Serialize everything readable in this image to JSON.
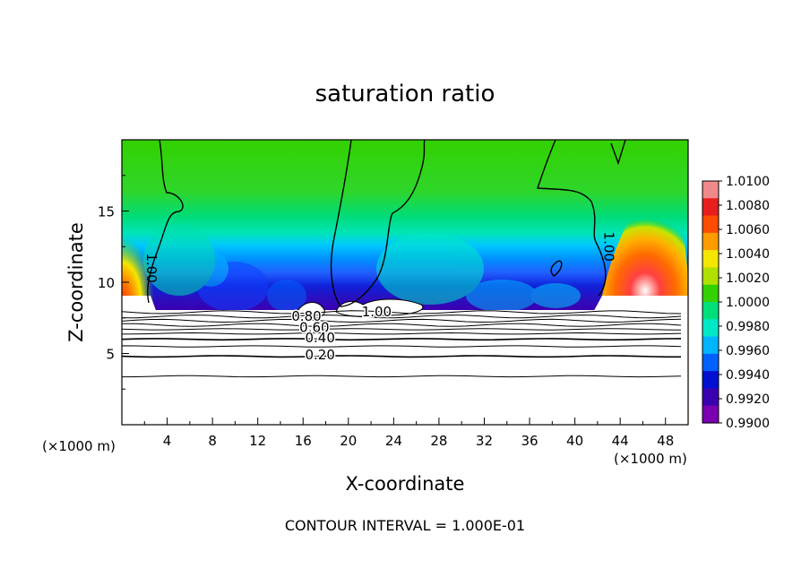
{
  "chart_data": {
    "type": "heatmap",
    "title": "saturation ratio",
    "xlabel": "X-coordinate",
    "ylabel": "Z-coordinate",
    "x_units": "(×1000 m)",
    "y_units": "(×1000 m)",
    "xlim": [
      0,
      50
    ],
    "ylim": [
      0,
      20
    ],
    "x_ticks": [
      4,
      8,
      12,
      16,
      20,
      24,
      28,
      32,
      36,
      40,
      44,
      48
    ],
    "y_ticks": [
      5,
      10,
      15
    ],
    "footer": "CONTOUR INTERVAL = 1.000E-01",
    "colorbar": {
      "min": 0.99,
      "max": 1.01,
      "labels": [
        "1.0100",
        "1.0080",
        "1.0060",
        "1.0040",
        "1.0020",
        "1.0000",
        "0.9980",
        "0.9960",
        "0.9940",
        "0.9920",
        "0.9900"
      ],
      "colors": [
        "#f08a8a",
        "#e81e1e",
        "#ff4b00",
        "#ff9c00",
        "#f5e600",
        "#b0e000",
        "#33d100",
        "#00e07a",
        "#00e8c8",
        "#00b4ff",
        "#0060ff",
        "#0010d0",
        "#3a00b0",
        "#7a00b0"
      ]
    },
    "contour_labels": [
      {
        "text": "1.00",
        "x": 2.2,
        "y": 11.0
      },
      {
        "text": "1.00",
        "x": 42.6,
        "y": 12.5
      },
      {
        "text": "1.00",
        "x": 22.5,
        "y": 7.6
      },
      {
        "text": "0.80",
        "x": 16.3,
        "y": 7.3
      },
      {
        "text": "0.60",
        "x": 17.0,
        "y": 6.5
      },
      {
        "text": "0.40",
        "x": 17.5,
        "y": 5.8
      },
      {
        "text": "0.20",
        "x": 17.5,
        "y": 4.6
      }
    ],
    "contour_lines_y": [
      7.9,
      7.6,
      7.3,
      7.0,
      6.7,
      6.4,
      6.0,
      5.5,
      4.8,
      3.4
    ]
  }
}
